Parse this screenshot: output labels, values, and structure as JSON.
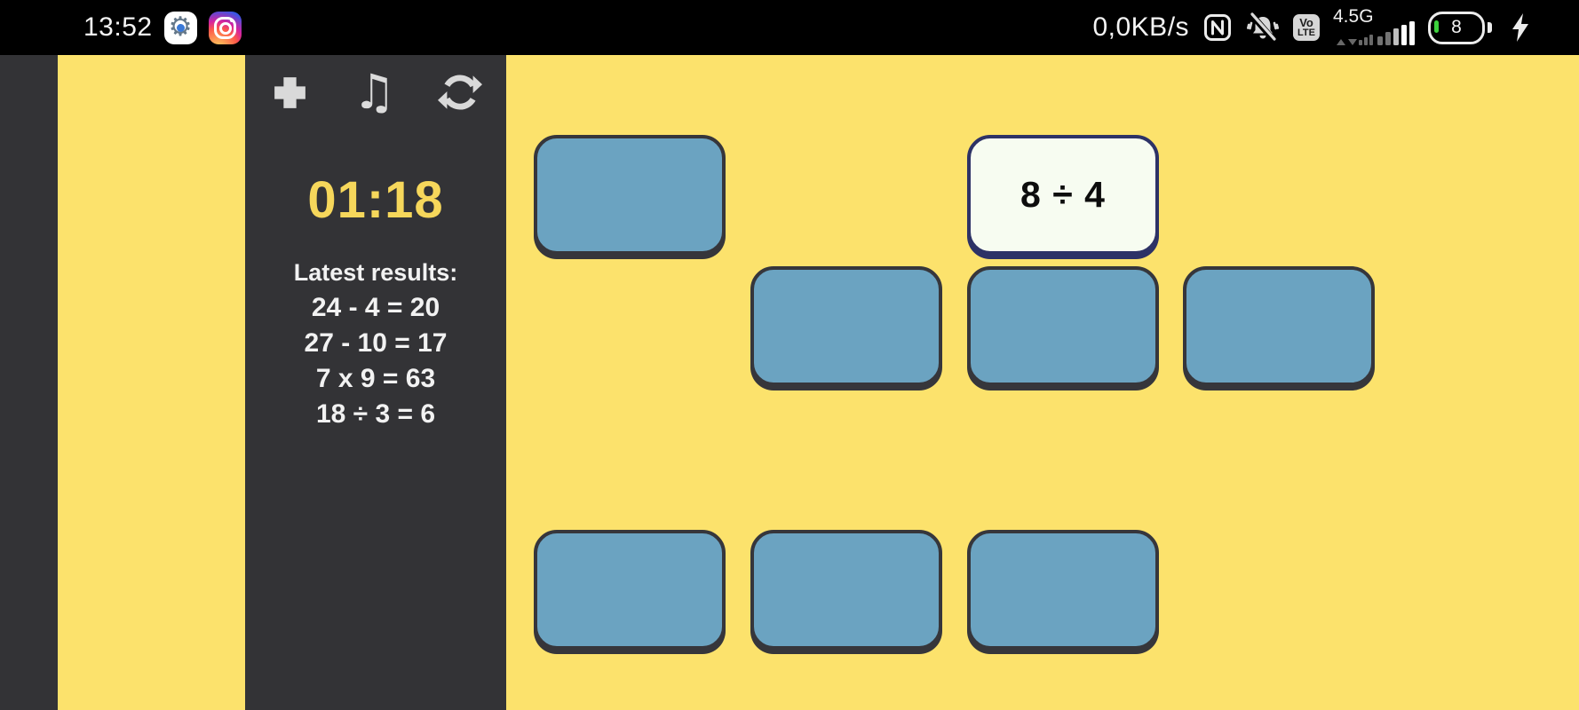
{
  "status_bar": {
    "time": "13:52",
    "data_rate": "0,0KB/s",
    "network_type": "4.5G",
    "volte": [
      "Vo",
      "LTE"
    ],
    "battery_percent": "8",
    "charging": true,
    "app_icons": [
      "settings-icon",
      "instagram-icon"
    ],
    "right_icons": [
      "nfc-icon",
      "vibrate-off-icon",
      "volte-badge",
      "signal-bars",
      "battery",
      "charging-bolt-icon"
    ]
  },
  "sidebar": {
    "icons": [
      "exit-fullscreen-icon",
      "music-icon",
      "restart-icon"
    ],
    "timer": "01:18",
    "results_title": "Latest results:",
    "results": [
      "24 - 4 = 20",
      "27 - 10 = 17",
      "7 x 9 = 63",
      "18 ÷ 3 = 6"
    ]
  },
  "board": {
    "grid": {
      "rows": 4,
      "cols": 4
    },
    "revealed_card": "8 ÷ 4",
    "cards": [
      {
        "row": 0,
        "col": 0,
        "state": "hidden",
        "label": ""
      },
      {
        "row": 0,
        "col": 2,
        "state": "revealed",
        "label": "8 ÷ 4"
      },
      {
        "row": 1,
        "col": 1,
        "state": "hidden",
        "label": ""
      },
      {
        "row": 1,
        "col": 2,
        "state": "hidden",
        "label": ""
      },
      {
        "row": 1,
        "col": 3,
        "state": "hidden",
        "label": ""
      },
      {
        "row": 3,
        "col": 0,
        "state": "hidden",
        "label": ""
      },
      {
        "row": 3,
        "col": 1,
        "state": "hidden",
        "label": ""
      },
      {
        "row": 3,
        "col": 2,
        "state": "hidden",
        "label": ""
      }
    ]
  },
  "colors": {
    "background_yellow": "#FCE26C",
    "panel_dark": "#333336",
    "card_blue": "#6BA3C1",
    "card_border": "#36363B",
    "revealed_card_bg": "#F7FCF1",
    "revealed_card_border": "#2D3266",
    "timer_yellow": "#F6D75B",
    "battery_green": "#3DD13D"
  }
}
